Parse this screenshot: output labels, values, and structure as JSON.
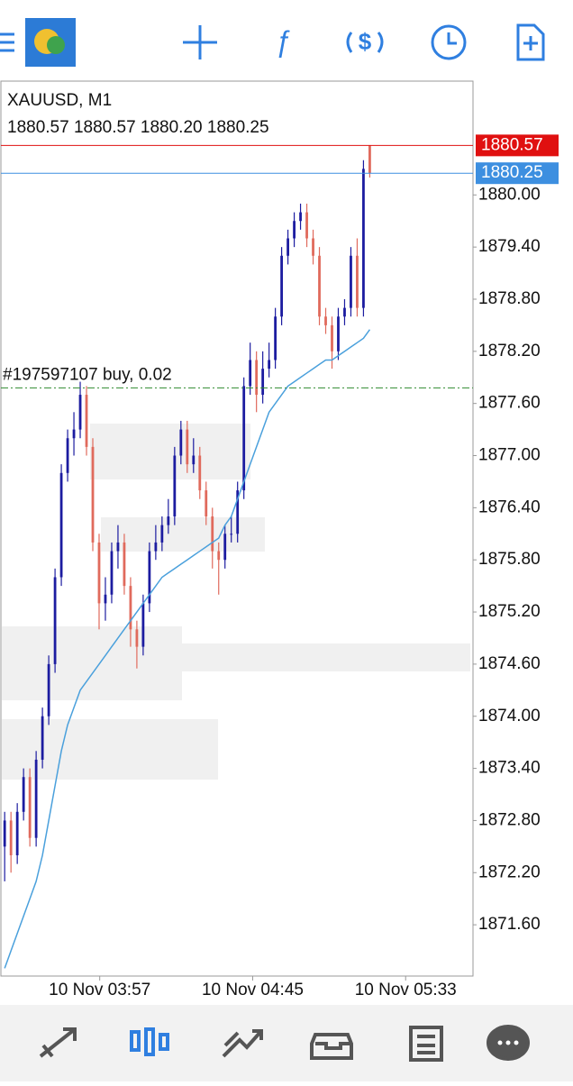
{
  "chart_data": {
    "type": "candlestick",
    "title": "XAUUSD, M1",
    "subtitle": "1880.57 1880.57 1880.20 1880.25",
    "up_color": "#1c1ca0",
    "down_color": "#e06a5c",
    "ma_color": "#4aa0dc",
    "ylim": [
      1871.01,
      1881.31
    ],
    "yticks": [
      {
        "value": 1880.0,
        "label": "1880.00"
      },
      {
        "value": 1879.4,
        "label": "1879.40"
      },
      {
        "value": 1878.8,
        "label": "1878.80"
      },
      {
        "value": 1878.2,
        "label": "1878.20"
      },
      {
        "value": 1877.6,
        "label": "1877.60"
      },
      {
        "value": 1877.0,
        "label": "1877.00"
      },
      {
        "value": 1876.4,
        "label": "1876.40"
      },
      {
        "value": 1875.8,
        "label": "1875.80"
      },
      {
        "value": 1875.2,
        "label": "1875.20"
      },
      {
        "value": 1874.6,
        "label": "1874.60"
      },
      {
        "value": 1874.0,
        "label": "1874.00"
      },
      {
        "value": 1873.4,
        "label": "1873.40"
      },
      {
        "value": 1872.8,
        "label": "1872.80"
      },
      {
        "value": 1872.2,
        "label": "1872.20"
      },
      {
        "value": 1871.6,
        "label": "1871.60"
      }
    ],
    "xlim": [
      -0.6,
      74.4
    ],
    "xticks": [
      {
        "value": 15.1,
        "label": "10 Nov 03:57"
      },
      {
        "value": 39.4,
        "label": "10 Nov 04:45"
      },
      {
        "value": 63.7,
        "label": "10 Nov 05:33"
      }
    ],
    "open": [
      1872.5,
      1872.8,
      1872.4,
      1872.9,
      1873.3,
      1872.6,
      1873.5,
      1874.0,
      1874.6,
      1875.6,
      1876.8,
      1877.2,
      1877.3,
      1877.7,
      1877.1,
      1876.0,
      1875.3,
      1875.4,
      1875.9,
      1876.0,
      1875.5,
      1875.0,
      1874.8,
      1875.3,
      1875.9,
      1876.0,
      1876.2,
      1876.3,
      1877.0,
      1877.3,
      1876.9,
      1877.0,
      1876.6,
      1876.3,
      1875.9,
      1875.8,
      1876.1,
      1876.1,
      1876.6,
      1877.8,
      1878.1,
      1877.7,
      1878.0,
      1878.1,
      1878.6,
      1879.3,
      1879.5,
      1879.7,
      1879.8,
      1879.5,
      1879.3,
      1878.6,
      1878.5,
      1878.2,
      1878.6,
      1878.7,
      1879.3,
      1878.7,
      1880.57
    ],
    "high": [
      1872.9,
      1872.9,
      1873.0,
      1873.4,
      1873.4,
      1873.6,
      1874.1,
      1874.7,
      1875.7,
      1876.9,
      1877.3,
      1877.5,
      1877.85,
      1877.8,
      1877.2,
      1876.1,
      1875.6,
      1876.0,
      1876.2,
      1876.1,
      1875.6,
      1875.1,
      1875.4,
      1876.0,
      1876.2,
      1876.3,
      1876.5,
      1877.1,
      1877.4,
      1877.4,
      1877.2,
      1877.1,
      1876.7,
      1876.4,
      1876.0,
      1876.2,
      1876.3,
      1876.7,
      1877.9,
      1878.3,
      1878.2,
      1878.2,
      1878.3,
      1878.7,
      1879.4,
      1879.6,
      1879.8,
      1879.9,
      1879.9,
      1879.6,
      1879.4,
      1878.7,
      1878.6,
      1878.7,
      1878.8,
      1879.4,
      1879.5,
      1880.4,
      1880.57
    ],
    "low": [
      1872.1,
      1872.2,
      1872.3,
      1872.8,
      1872.5,
      1872.5,
      1873.4,
      1873.9,
      1874.5,
      1875.5,
      1876.7,
      1877.0,
      1877.2,
      1877.0,
      1875.9,
      1875.0,
      1875.1,
      1875.3,
      1875.7,
      1875.4,
      1874.8,
      1874.55,
      1874.7,
      1875.2,
      1875.8,
      1875.9,
      1876.1,
      1876.2,
      1876.9,
      1876.8,
      1876.8,
      1876.5,
      1876.2,
      1875.7,
      1875.4,
      1875.7,
      1876.0,
      1876.0,
      1876.5,
      1877.7,
      1877.5,
      1877.6,
      1877.9,
      1878.0,
      1878.5,
      1879.2,
      1879.4,
      1879.6,
      1879.4,
      1879.2,
      1878.5,
      1878.4,
      1878.0,
      1878.1,
      1878.5,
      1878.6,
      1878.6,
      1878.6,
      1880.2
    ],
    "close": [
      1872.8,
      1872.4,
      1872.9,
      1873.3,
      1872.6,
      1873.5,
      1874.0,
      1874.6,
      1875.6,
      1876.8,
      1877.2,
      1877.3,
      1877.7,
      1877.1,
      1876.0,
      1875.3,
      1875.4,
      1875.9,
      1876.0,
      1875.5,
      1875.0,
      1874.8,
      1875.3,
      1875.9,
      1876.0,
      1876.2,
      1876.3,
      1877.0,
      1877.3,
      1876.9,
      1877.0,
      1876.6,
      1876.3,
      1875.9,
      1875.8,
      1876.1,
      1876.1,
      1876.6,
      1877.8,
      1878.1,
      1877.7,
      1878.0,
      1878.1,
      1878.6,
      1879.3,
      1879.5,
      1879.7,
      1879.8,
      1879.5,
      1879.3,
      1878.6,
      1878.5,
      1878.2,
      1878.6,
      1878.7,
      1879.3,
      1878.7,
      1880.3,
      1880.25
    ],
    "ma": [
      1871.1,
      1871.3,
      1871.5,
      1871.7,
      1871.9,
      1872.1,
      1872.4,
      1872.8,
      1873.2,
      1873.6,
      1873.9,
      1874.1,
      1874.3,
      1874.4,
      1874.5,
      1874.6,
      1874.7,
      1874.8,
      1874.9,
      1875.0,
      1875.1,
      1875.2,
      1875.3,
      1875.4,
      1875.5,
      1875.6,
      1875.65,
      1875.7,
      1875.75,
      1875.8,
      1875.85,
      1875.9,
      1875.95,
      1876.0,
      1876.05,
      1876.2,
      1876.3,
      1876.5,
      1876.7,
      1876.9,
      1877.1,
      1877.3,
      1877.5,
      1877.6,
      1877.7,
      1877.8,
      1877.85,
      1877.9,
      1877.95,
      1878.0,
      1878.05,
      1878.1,
      1878.1,
      1878.15,
      1878.2,
      1878.25,
      1878.3,
      1878.35,
      1878.45
    ],
    "ask": {
      "value": 1880.57,
      "label": "1880.57",
      "color": "#e01010"
    },
    "bid": {
      "value": 1880.25,
      "label": "1880.25",
      "color": "#3d8fe0"
    },
    "order": {
      "value": 1877.78,
      "label": "#197597107 buy, 0.02",
      "color": "#2e8b2e"
    }
  }
}
